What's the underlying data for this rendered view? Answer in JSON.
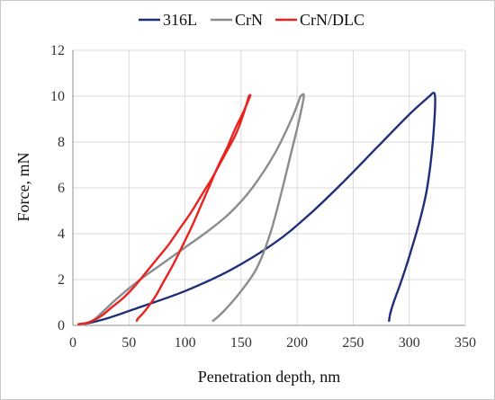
{
  "chart_data": {
    "type": "line",
    "xlabel": "Penetration depth, nm",
    "ylabel": "Force, mN",
    "xlim": [
      0,
      350
    ],
    "ylim": [
      0,
      12
    ],
    "xticks": [
      0,
      50,
      100,
      150,
      200,
      250,
      300,
      350
    ],
    "yticks": [
      0,
      2,
      4,
      6,
      8,
      10,
      12
    ],
    "grid": true,
    "legend_position": "top",
    "series": [
      {
        "name": "316L",
        "color": "#1f2f78",
        "segments": [
          {
            "x": [
              10,
              30,
              60,
              100,
              140,
              180,
              210,
              240,
              270,
              300,
              318
            ],
            "y": [
              0.05,
              0.3,
              0.8,
              1.5,
              2.4,
              3.6,
              4.8,
              6.2,
              7.7,
              9.2,
              10.0
            ]
          },
          {
            "x": [
              318,
              323,
              321,
              316,
              309,
              300,
              292,
              286,
              283,
              282
            ],
            "y": [
              10.0,
              10.0,
              8.0,
              6.0,
              4.5,
              3.0,
              1.8,
              1.0,
              0.5,
              0.2
            ]
          }
        ]
      },
      {
        "name": "CrN",
        "color": "#8c8c8c",
        "segments": [
          {
            "x": [
              10,
              20,
              40,
              60,
              80,
              100,
              120,
              140,
              160,
              180,
              195,
              203
            ],
            "y": [
              0.05,
              0.3,
              1.2,
              2.0,
              2.7,
              3.4,
              4.1,
              4.9,
              6.0,
              7.5,
              9.0,
              10.0
            ]
          },
          {
            "x": [
              203,
              206,
              201,
              194,
              186,
              176,
              164,
              150,
              138,
              130,
              125
            ],
            "y": [
              10.0,
              10.0,
              8.8,
              7.4,
              5.8,
              4.0,
              2.5,
              1.5,
              0.8,
              0.4,
              0.2
            ]
          }
        ]
      },
      {
        "name": "CrN/DLC",
        "color": "#e8231f",
        "segments": [
          {
            "x": [
              5,
              15,
              25,
              35,
              45,
              55,
              65,
              75,
              85,
              95,
              105,
              115,
              125,
              135,
              145,
              152,
              157
            ],
            "y": [
              0.05,
              0.15,
              0.4,
              0.8,
              1.2,
              1.7,
              2.3,
              2.9,
              3.5,
              4.2,
              4.9,
              5.7,
              6.5,
              7.4,
              8.3,
              9.2,
              10.0
            ]
          },
          {
            "x": [
              157,
              158,
              152,
              145,
              138,
              130,
              122,
              114,
              106,
              98,
              90,
              82,
              74,
              67,
              62,
              58,
              57
            ],
            "y": [
              10.0,
              10.0,
              9.3,
              8.6,
              7.8,
              7.0,
              6.1,
              5.2,
              4.3,
              3.5,
              2.7,
              2.0,
              1.3,
              0.8,
              0.5,
              0.3,
              0.2
            ]
          }
        ]
      }
    ]
  }
}
